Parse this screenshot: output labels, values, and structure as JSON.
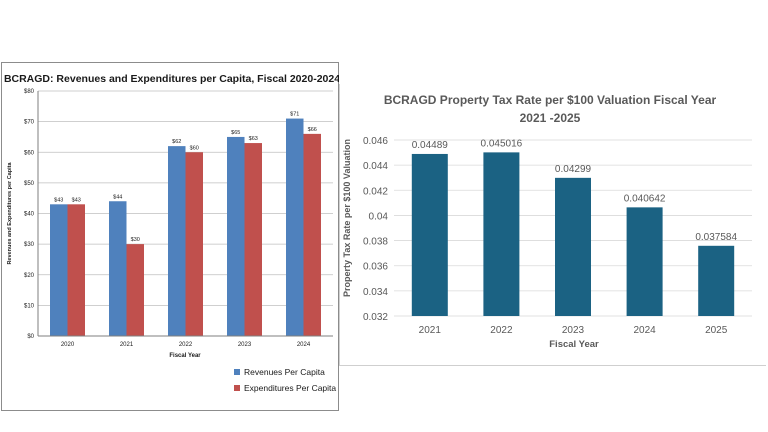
{
  "chart_data": [
    {
      "type": "bar",
      "title": "BCRAGD: Revenues and Expenditures per Capita, Fiscal 2020-2024",
      "xlabel": "Fiscal Year",
      "ylabel": "Revenues and Expenditures per Capita",
      "categories": [
        "2020",
        "2021",
        "2022",
        "2023",
        "2024"
      ],
      "series": [
        {
          "name": "Revenues Per Capita",
          "values": [
            43,
            44,
            62,
            65,
            71
          ],
          "labels": [
            "$43",
            "$44",
            "$62",
            "$65",
            "$71"
          ],
          "color": "#4f81bd"
        },
        {
          "name": "Expenditures Per Capita",
          "values": [
            43,
            30,
            60,
            63,
            66
          ],
          "labels": [
            "$43",
            "$30",
            "$60",
            "$63",
            "$66"
          ],
          "color": "#c0504d"
        }
      ],
      "ylim": [
        0,
        80
      ],
      "yticks": [
        0,
        10,
        20,
        30,
        40,
        50,
        60,
        70,
        80
      ],
      "ytick_labels": [
        "$0",
        "$10",
        "$20",
        "$30",
        "$40",
        "$50",
        "$60",
        "$70",
        "$80"
      ],
      "grid": true,
      "legend_position": "bottom"
    },
    {
      "type": "bar",
      "title": "BCRAGD Property Tax Rate per $100 Valuation Fiscal Year 2021 -2025",
      "title_lines": [
        "BCRAGD Property Tax Rate per $100 Valuation Fiscal Year",
        "2021 -2025"
      ],
      "xlabel": "Fiscal Year",
      "ylabel": "Property Tax Rate per $100 Valuation",
      "categories": [
        "2021",
        "2022",
        "2023",
        "2024",
        "2025"
      ],
      "values": [
        0.04489,
        0.045016,
        0.04299,
        0.040642,
        0.037584
      ],
      "value_labels": [
        "0.04489",
        "0.045016",
        "0.04299",
        "0.040642",
        "0.037584"
      ],
      "color": "#1b6283",
      "ylim": [
        0.032,
        0.046
      ],
      "yticks": [
        0.032,
        0.034,
        0.036,
        0.038,
        0.04,
        0.042,
        0.044,
        0.046
      ],
      "ytick_labels": [
        "0.032",
        "0.034",
        "0.036",
        "0.038",
        "0.04",
        "0.042",
        "0.044",
        "0.046"
      ],
      "grid": true
    }
  ]
}
